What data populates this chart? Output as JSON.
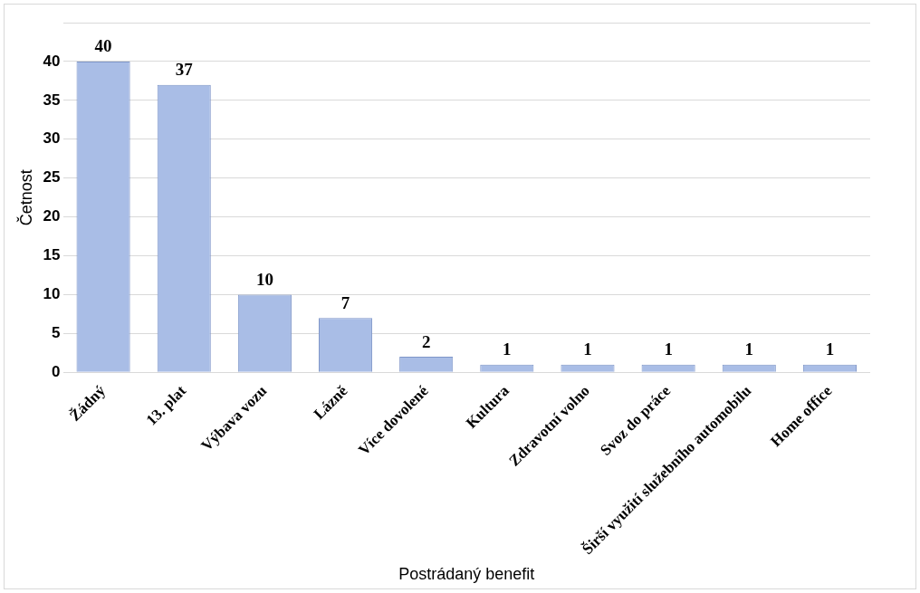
{
  "chart_data": {
    "type": "bar",
    "xlabel": "Postrádaný benefit",
    "ylabel": "Četnost",
    "categories": [
      "Žádný",
      "13. plat",
      "Výbava vozu",
      "Lázně",
      "Více dovolené",
      "Kultura",
      "Zdravotní volno",
      "Svoz do práce",
      "Širší využití služebního automobilu",
      "Home office"
    ],
    "values": [
      40,
      37,
      10,
      7,
      2,
      1,
      1,
      1,
      1,
      1
    ],
    "color": "#a9bde6",
    "ylim": [
      0,
      45
    ],
    "yticks": [
      0,
      5,
      10,
      15,
      20,
      25,
      30,
      35,
      40,
      {
        "value": 45,
        "label": null
      }
    ],
    "grid": "y",
    "data_labels": true,
    "legend": false
  }
}
